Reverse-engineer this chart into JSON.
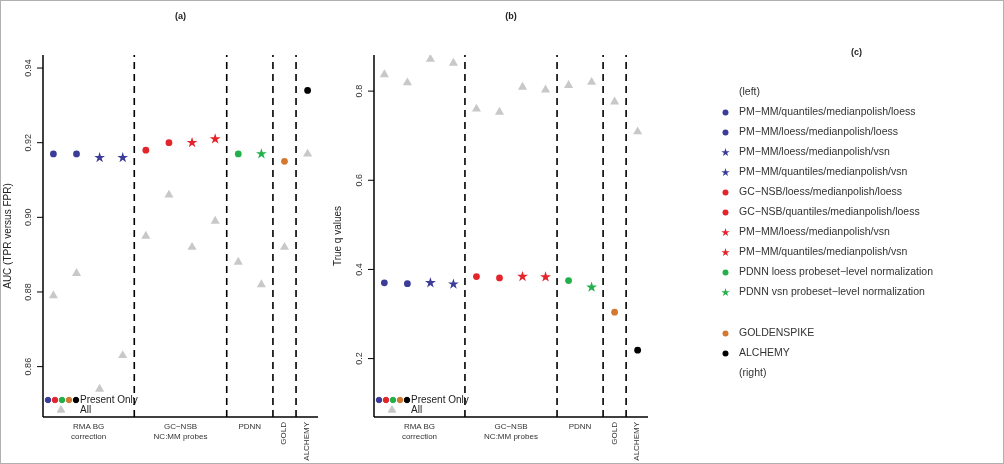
{
  "chart_data": [
    {
      "type": "scatter",
      "title": "(a)",
      "ylabel": "AUC (TPR versus FPR)",
      "categories": [
        null,
        null,
        null,
        null,
        null,
        null,
        null,
        null,
        null,
        null,
        null,
        null
      ],
      "annotations": [
        "RMA BG\ncorrection",
        "GC−NSB\nNC:MM probes",
        "PDNN",
        "GOLD",
        "ALCHEMY"
      ],
      "ylim": [
        0.8465,
        0.9435
      ],
      "yticks": [
        0.86,
        0.88,
        {
          "value": 0.9,
          "label": "0.90"
        },
        0.92,
        0.94
      ],
      "legend": "bottom left",
      "series": [
        {
          "name": "Present Only",
          "marker": "circle",
          "colors": [
            "#3b3b98",
            "#3b3b98",
            null,
            null,
            "#e3242b",
            "#e3242b",
            null,
            null,
            "#22b04b",
            null,
            "#d4782f",
            "#000000"
          ],
          "values": [
            0.917,
            0.917,
            null,
            null,
            0.918,
            0.92,
            null,
            null,
            0.917,
            null,
            0.915,
            0.934
          ]
        },
        {
          "marker": "star",
          "colors": [
            null,
            null,
            "#3b3b98",
            "#3b3b98",
            null,
            null,
            "#e3242b",
            "#e3242b",
            null,
            "#22b04b",
            null,
            null
          ],
          "values": [
            null,
            null,
            0.916,
            0.916,
            null,
            null,
            0.92,
            0.921,
            null,
            0.917,
            null,
            null
          ]
        },
        {
          "name": "All",
          "marker": "triangle",
          "color": "#c8c8c8",
          "values": [
            0.879,
            0.885,
            0.854,
            0.863,
            0.895,
            0.906,
            0.892,
            0.899,
            0.888,
            0.882,
            0.892,
            0.917
          ]
        }
      ]
    },
    {
      "type": "scatter",
      "title": "(b)",
      "ylabel": "True q values",
      "categories": [
        null,
        null,
        null,
        null,
        null,
        null,
        null,
        null,
        null,
        null,
        null,
        null
      ],
      "annotations": [
        "RMA BG\ncorrection",
        "GC−NSB\nNC:MM probes",
        "PDNN",
        "GOLD",
        "ALCHEMY"
      ],
      "ylim": [
        0.069,
        0.881
      ],
      "yticks": [
        0.2,
        0.4,
        0.6,
        0.8
      ],
      "legend": "bottom left",
      "series": [
        {
          "name": "Present Only",
          "marker": "circle",
          "colors": [
            "#3b3b98",
            "#3b3b98",
            null,
            null,
            "#e3242b",
            "#e3242b",
            null,
            null,
            "#22b04b",
            null,
            "#d4782f",
            "#000000"
          ],
          "values": [
            0.37,
            0.368,
            null,
            null,
            0.384,
            0.381,
            null,
            null,
            0.375,
            null,
            0.304,
            0.219
          ]
        },
        {
          "marker": "star",
          "colors": [
            null,
            null,
            "#3b3b98",
            "#3b3b98",
            null,
            null,
            "#e3242b",
            "#e3242b",
            null,
            "#22b04b",
            null,
            null
          ],
          "values": [
            null,
            null,
            0.37,
            0.367,
            null,
            null,
            0.384,
            0.383,
            null,
            0.36,
            null,
            null
          ]
        },
        {
          "name": "All",
          "marker": "triangle",
          "color": "#c8c8c8",
          "values": [
            0.837,
            0.819,
            0.872,
            0.863,
            0.76,
            0.753,
            0.809,
            0.803,
            0.813,
            0.82,
            0.776,
            0.709
          ]
        }
      ]
    },
    {
      "type": "other",
      "title": "(c)",
      "annotations": [
        "(left)",
        "PM−MM/quantiles/medianpolish/loess",
        "PM−MM/loess/medianpolish/loess",
        "PM−MM/loess/medianpolish/vsn",
        "PM−MM/quantiles/medianpolish/vsn",
        "GC−NSB/loess/medianpolish/loess",
        "GC−NSB/quantiles/medianpolish/loess",
        "PM−MM/loess/medianpolish/vsn",
        "PM−MM/quantiles/medianpolish/vsn",
        "PDNN loess probeset−level normalization",
        "PDNN vsn probeset−level normalization",
        "GOLDENSPIKE",
        "ALCHEMY",
        "(right)"
      ]
    }
  ]
}
